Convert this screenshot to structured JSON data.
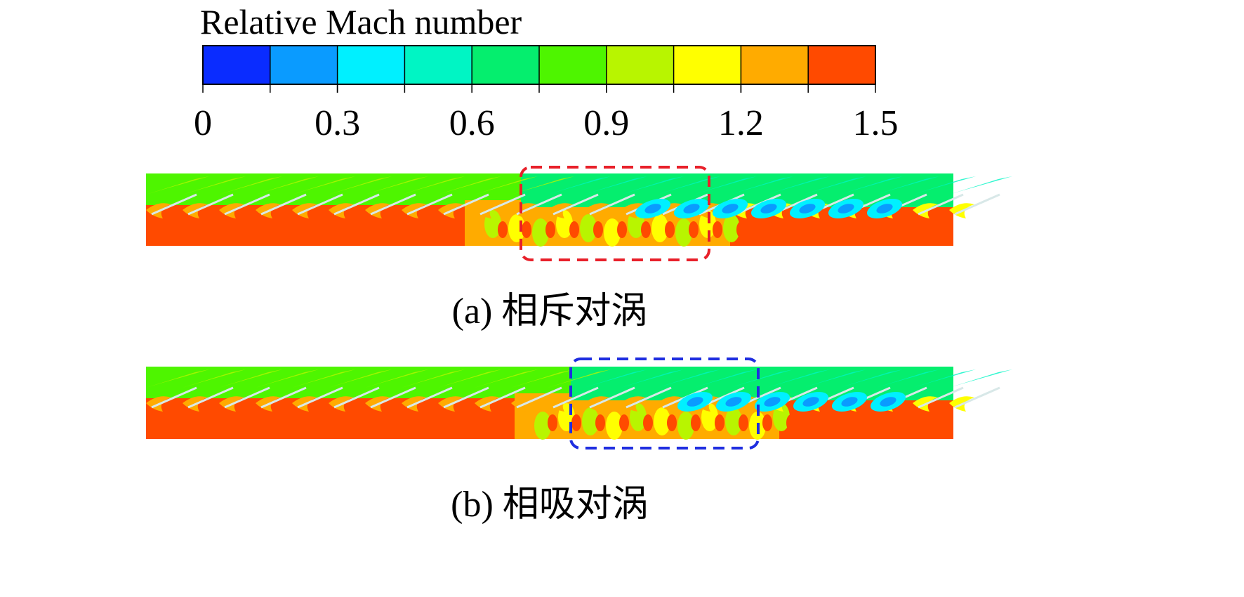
{
  "colorbar": {
    "title": "Relative Mach number",
    "range": [
      0,
      1.5
    ],
    "ticks": [
      0,
      0.3,
      0.6,
      0.9,
      1.2,
      1.5
    ],
    "colors": [
      "#0a2cff",
      "#0a9bff",
      "#00f0ff",
      "#00f5c4",
      "#05ee6e",
      "#4ef500",
      "#b8f500",
      "#ffff00",
      "#ffab00",
      "#ff4a00"
    ]
  },
  "panels": [
    {
      "caption": "(a) 相斥对涡"
    },
    {
      "caption": "(b) 相吸对涡"
    }
  ]
}
